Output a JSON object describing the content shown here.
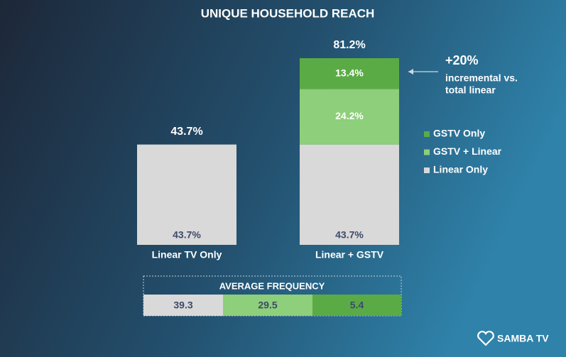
{
  "chart_data": {
    "type": "bar",
    "stacked": true,
    "title": "UNIQUE HOUSEHOLD REACH",
    "categories": [
      "Linear TV Only",
      "Linear + GSTV"
    ],
    "series": [
      {
        "name": "Linear Only",
        "color": "#d9d9d9",
        "values": [
          43.7,
          43.7
        ],
        "value_labels": [
          "43.7%",
          "43.7%"
        ]
      },
      {
        "name": "GSTV + Linear",
        "color": "#8dcf7a",
        "values": [
          null,
          24.2
        ],
        "value_labels": [
          null,
          "24.2%"
        ]
      },
      {
        "name": "GSTV Only",
        "color": "#5aab46",
        "values": [
          null,
          13.4
        ],
        "value_labels": [
          null,
          "13.4%"
        ]
      }
    ],
    "total_labels": [
      "43.7%",
      "81.2%"
    ],
    "annotation": {
      "headline": "+20%",
      "lines": [
        "incremental vs.",
        "total linear"
      ]
    },
    "frequency": {
      "title": "AVERAGE FREQUENCY",
      "values": [
        39.3,
        29.5,
        5.4
      ]
    },
    "logo": "SAMBA TV"
  }
}
